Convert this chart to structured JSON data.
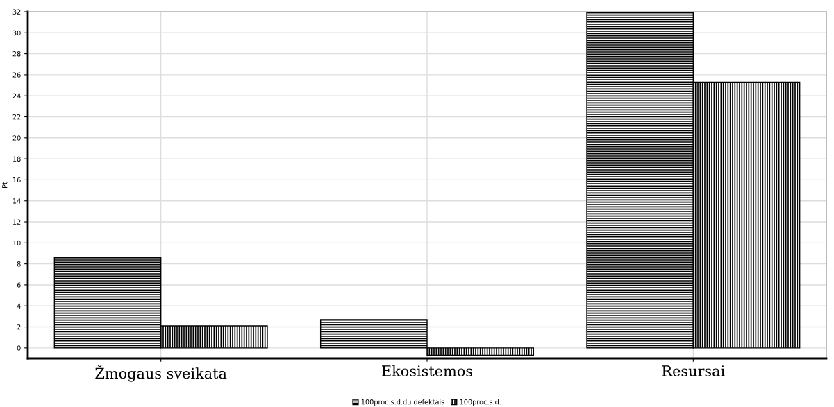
{
  "chart_data": {
    "type": "bar",
    "ylabel": "Pt",
    "categories": [
      "Žmogaus sveikata",
      "Ekosistemos",
      "Resursai"
    ],
    "series": [
      {
        "name": "100proc.s.d.du defektais",
        "color": "#000000",
        "values": [
          8.6,
          2.7,
          31.9
        ]
      },
      {
        "name": "100proc.s.d.",
        "color": "#000000",
        "values": [
          2.1,
          -0.7,
          25.3
        ]
      }
    ],
    "ylim": [
      -1,
      32
    ],
    "yticks": [
      0,
      2,
      4,
      6,
      8,
      10,
      12,
      14,
      16,
      18,
      20,
      22,
      24,
      26,
      28,
      30,
      32
    ],
    "grid": true,
    "legend": "bottom"
  }
}
